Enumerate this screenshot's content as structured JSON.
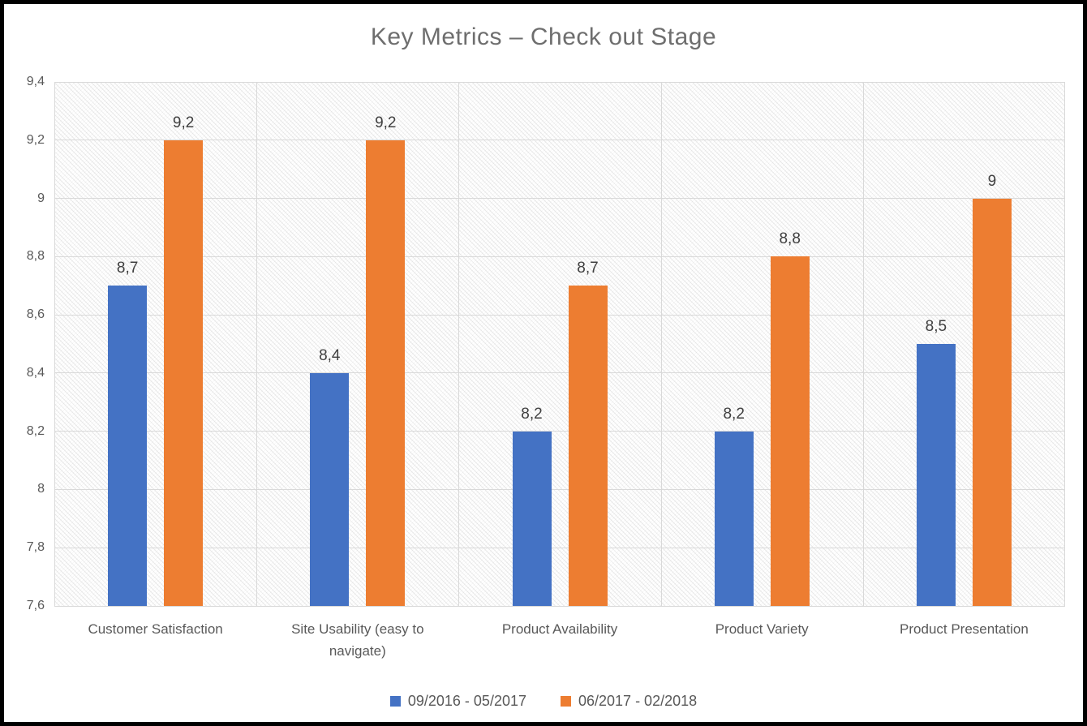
{
  "chart_data": {
    "type": "bar",
    "title": "Key Metrics – Check out Stage",
    "categories": [
      "Customer Satisfaction",
      "Site Usability (easy to navigate)",
      "Product Availability",
      "Product Variety",
      "Product Presentation"
    ],
    "series": [
      {
        "name": "09/2016 - 05/2017",
        "color": "#4472C4",
        "values": [
          8.7,
          8.4,
          8.2,
          8.2,
          8.5
        ]
      },
      {
        "name": "06/2017 - 02/2018",
        "color": "#ED7D31",
        "values": [
          9.2,
          9.2,
          8.7,
          8.8,
          9
        ]
      }
    ],
    "ylim": [
      7.6,
      9.4
    ],
    "ytick_step": 0.2,
    "decimal_separator": ",",
    "grid": true,
    "legend_position": "bottom",
    "plot_background": "diagonal-hatch",
    "colors": {
      "gridline": "#d9d9d9",
      "title_text": "#6e6e6e",
      "axis_text": "#595959",
      "data_label_text": "#404040",
      "frame_border": "#000000"
    }
  }
}
